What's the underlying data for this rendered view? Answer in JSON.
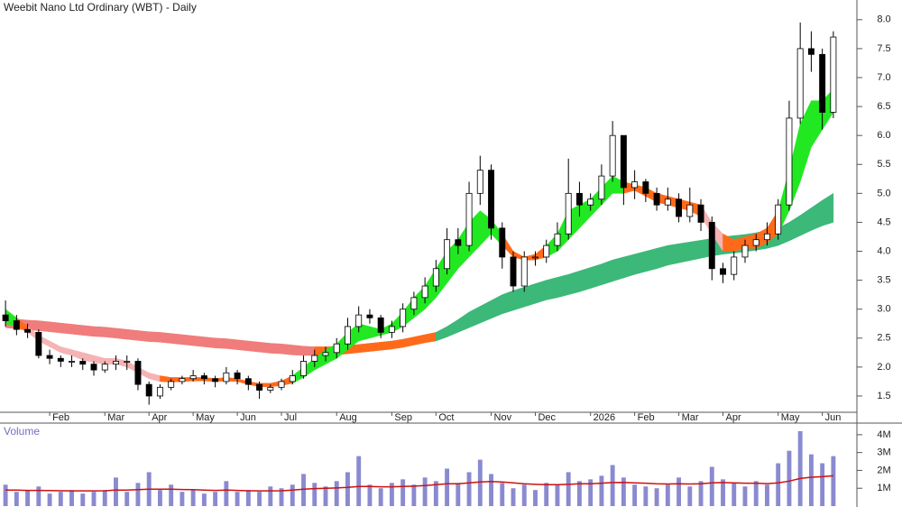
{
  "chart_data": [
    {
      "type": "candlestick",
      "title": "Weebit Nano Ltd Ordinary (WBT) - Daily",
      "categories": [
        null,
        null,
        null,
        null,
        "Feb",
        null,
        null,
        null,
        null,
        "Mar",
        null,
        null,
        null,
        "Apr",
        null,
        null,
        null,
        "May",
        null,
        null,
        null,
        "Jun",
        null,
        null,
        null,
        "Jul",
        null,
        null,
        null,
        null,
        "Aug",
        null,
        null,
        null,
        null,
        "Sep",
        null,
        null,
        null,
        "Oct",
        null,
        null,
        null,
        null,
        "Nov",
        null,
        null,
        null,
        "Dec",
        null,
        null,
        null,
        null,
        "2026",
        null,
        null,
        null,
        "Feb",
        null,
        null,
        null,
        "Mar",
        null,
        null,
        null,
        "Apr",
        null,
        null,
        null,
        null,
        "May",
        null,
        null,
        null,
        "Jun",
        null
      ],
      "open": [
        2.9,
        2.8,
        2.65,
        2.6,
        2.2,
        2.15,
        2.1,
        2.1,
        2.05,
        1.95,
        2.05,
        2.1,
        2.1,
        1.7,
        1.5,
        1.65,
        1.75,
        1.8,
        1.85,
        1.8,
        1.75,
        1.9,
        1.8,
        1.7,
        1.6,
        1.65,
        1.75,
        1.85,
        2.1,
        2.2,
        2.25,
        2.4,
        2.7,
        2.9,
        2.85,
        2.6,
        2.7,
        3.0,
        3.2,
        3.4,
        3.7,
        4.2,
        4.1,
        5.0,
        5.4,
        4.4,
        3.9,
        3.4,
        3.9,
        3.9,
        4.1,
        4.3,
        5.0,
        4.8,
        4.9,
        5.3,
        6.0,
        5.1,
        5.2,
        5.0,
        4.8,
        4.9,
        4.6,
        4.8,
        4.5,
        3.7,
        3.6,
        3.9,
        4.1,
        4.2,
        4.3,
        4.8,
        6.3,
        7.5,
        7.4,
        6.4
      ],
      "high": [
        3.15,
        2.9,
        2.75,
        2.65,
        2.3,
        2.2,
        2.2,
        2.15,
        2.1,
        2.1,
        2.2,
        2.2,
        2.15,
        1.75,
        1.7,
        1.8,
        1.85,
        1.95,
        1.9,
        1.85,
        2.0,
        1.95,
        1.85,
        1.75,
        1.7,
        1.8,
        1.95,
        2.2,
        2.3,
        2.35,
        2.5,
        2.85,
        3.05,
        3.0,
        2.9,
        2.8,
        3.1,
        3.3,
        3.55,
        3.85,
        4.4,
        4.4,
        5.2,
        5.65,
        5.5,
        4.5,
        4.0,
        4.0,
        4.0,
        4.2,
        4.5,
        5.6,
        5.2,
        5.0,
        5.5,
        6.25,
        6.0,
        5.4,
        5.25,
        5.1,
        5.1,
        5.0,
        5.1,
        4.9,
        4.6,
        3.8,
        4.0,
        4.2,
        4.3,
        4.5,
        4.9,
        6.6,
        7.95,
        7.8,
        7.5,
        7.8
      ],
      "low": [
        2.7,
        2.55,
        2.5,
        2.15,
        2.05,
        2.0,
        2.0,
        1.95,
        1.85,
        1.9,
        1.95,
        1.95,
        1.6,
        1.35,
        1.45,
        1.6,
        1.7,
        1.75,
        1.7,
        1.65,
        1.7,
        1.7,
        1.6,
        1.45,
        1.55,
        1.6,
        1.7,
        1.8,
        2.0,
        2.1,
        2.15,
        2.3,
        2.6,
        2.75,
        2.5,
        2.5,
        2.6,
        2.9,
        3.1,
        3.3,
        3.6,
        3.95,
        4.0,
        4.8,
        4.2,
        3.7,
        3.3,
        3.3,
        3.75,
        3.8,
        4.0,
        4.2,
        4.6,
        4.7,
        4.8,
        5.2,
        4.8,
        4.9,
        4.85,
        4.7,
        4.7,
        4.5,
        4.5,
        4.35,
        3.5,
        3.45,
        3.5,
        3.8,
        4.0,
        4.1,
        4.2,
        4.7,
        6.2,
        7.1,
        6.1,
        6.3
      ],
      "close": [
        2.8,
        2.65,
        2.6,
        2.2,
        2.15,
        2.1,
        2.1,
        2.05,
        1.95,
        2.05,
        2.1,
        2.1,
        1.7,
        1.5,
        1.65,
        1.75,
        1.8,
        1.85,
        1.8,
        1.75,
        1.9,
        1.8,
        1.7,
        1.6,
        1.65,
        1.75,
        1.85,
        2.1,
        2.2,
        2.25,
        2.4,
        2.7,
        2.9,
        2.85,
        2.6,
        2.7,
        3.0,
        3.2,
        3.4,
        3.7,
        4.2,
        4.1,
        5.0,
        5.4,
        4.4,
        3.9,
        3.4,
        3.9,
        3.9,
        4.1,
        4.3,
        5.0,
        4.8,
        4.9,
        5.3,
        6.0,
        5.1,
        5.2,
        5.0,
        4.8,
        4.9,
        4.6,
        4.8,
        4.5,
        3.7,
        3.6,
        3.9,
        4.1,
        4.2,
        4.3,
        4.8,
        6.3,
        7.5,
        7.4,
        6.4,
        7.7
      ],
      "up_color": "#ffffff",
      "down_color": "#000000",
      "bands": [
        {
          "upper": [
            2.85,
            2.83,
            2.81,
            2.8,
            2.78,
            2.76,
            2.74,
            2.72,
            2.7,
            2.69,
            2.67,
            2.65,
            2.63,
            2.61,
            2.6,
            2.58,
            2.56,
            2.54,
            2.52,
            2.5,
            2.49,
            2.47,
            2.45,
            2.43,
            2.41,
            2.4,
            2.38,
            2.36,
            2.35,
            2.35,
            2.35,
            2.37,
            2.39,
            2.41,
            2.43,
            2.45,
            2.48,
            2.52,
            2.56,
            2.6,
            2.7,
            2.82,
            2.95,
            3.05,
            3.15,
            3.25,
            3.32,
            3.38,
            3.44,
            3.5,
            3.55,
            3.6,
            3.66,
            3.72,
            3.78,
            3.85,
            3.9,
            3.95,
            4.0,
            4.05,
            4.1,
            4.13,
            4.16,
            4.19,
            4.22,
            4.25,
            4.27,
            4.29,
            4.32,
            4.36,
            4.4,
            4.5,
            4.62,
            4.75,
            4.88,
            5.0
          ],
          "lower": [
            2.68,
            2.66,
            2.64,
            2.63,
            2.61,
            2.59,
            2.57,
            2.55,
            2.53,
            2.52,
            2.5,
            2.48,
            2.46,
            2.44,
            2.43,
            2.41,
            2.39,
            2.37,
            2.35,
            2.33,
            2.32,
            2.3,
            2.28,
            2.26,
            2.24,
            2.23,
            2.21,
            2.2,
            2.2,
            2.2,
            2.21,
            2.23,
            2.25,
            2.27,
            2.29,
            2.31,
            2.34,
            2.38,
            2.42,
            2.45,
            2.52,
            2.6,
            2.68,
            2.76,
            2.84,
            2.92,
            2.98,
            3.04,
            3.1,
            3.16,
            3.2,
            3.25,
            3.3,
            3.36,
            3.42,
            3.48,
            3.54,
            3.6,
            3.65,
            3.7,
            3.76,
            3.8,
            3.84,
            3.88,
            3.92,
            3.95,
            3.97,
            3.99,
            4.02,
            4.05,
            4.1,
            4.18,
            4.27,
            4.36,
            4.44,
            4.5
          ],
          "colors": [
            "#f07c7c",
            "#f07c7c",
            "#f07c7c",
            "#f07c7c",
            "#f07c7c",
            "#f07c7c",
            "#f07c7c",
            "#f07c7c",
            "#f07c7c",
            "#f07c7c",
            "#f07c7c",
            "#f07c7c",
            "#f07c7c",
            "#f07c7c",
            "#f07c7c",
            "#f07c7c",
            "#f07c7c",
            "#f07c7c",
            "#f07c7c",
            "#f07c7c",
            "#f07c7c",
            "#f07c7c",
            "#f07c7c",
            "#f07c7c",
            "#f07c7c",
            "#f07c7c",
            "#f07c7c",
            "#f07c7c",
            "#ff6a1a",
            "#ff6a1a",
            "#ff6a1a",
            "#ff6a1a",
            "#ff6a1a",
            "#ff6a1a",
            "#ff6a1a",
            "#ff6a1a",
            "#ff6a1a",
            "#ff6a1a",
            "#ff6a1a",
            "#3cb878",
            "#3cb878",
            "#3cb878",
            "#3cb878",
            "#3cb878",
            "#3cb878",
            "#3cb878",
            "#3cb878",
            "#3cb878",
            "#3cb878",
            "#3cb878",
            "#3cb878",
            "#3cb878",
            "#3cb878",
            "#3cb878",
            "#3cb878",
            "#3cb878",
            "#3cb878",
            "#3cb878",
            "#3cb878",
            "#3cb878",
            "#3cb878",
            "#3cb878",
            "#3cb878",
            "#3cb878",
            "#3cb878",
            "#3cb878",
            "#3cb878",
            "#3cb878",
            "#3cb878",
            "#3cb878",
            "#3cb878",
            "#3cb878",
            "#3cb878",
            "#3cb878",
            "#3cb878",
            "#3cb878"
          ]
        },
        {
          "upper": [
            3.0,
            2.85,
            2.7,
            2.55,
            2.45,
            2.35,
            2.3,
            2.25,
            2.2,
            2.15,
            2.15,
            2.1,
            2.0,
            1.9,
            1.85,
            1.82,
            1.82,
            1.82,
            1.82,
            1.8,
            1.82,
            1.8,
            1.75,
            1.72,
            1.72,
            1.76,
            1.85,
            2.0,
            2.15,
            2.3,
            2.4,
            2.6,
            2.75,
            2.7,
            2.65,
            2.75,
            2.95,
            3.2,
            3.4,
            3.7,
            4.0,
            4.2,
            4.5,
            4.7,
            4.55,
            4.3,
            4.0,
            3.9,
            3.95,
            4.1,
            4.3,
            4.7,
            4.8,
            4.9,
            5.1,
            5.3,
            5.2,
            5.15,
            5.1,
            5.0,
            4.95,
            4.9,
            4.85,
            4.8,
            4.5,
            4.3,
            4.2,
            4.25,
            4.3,
            4.4,
            4.7,
            5.4,
            6.2,
            6.6,
            6.6,
            6.8
          ],
          "lower": [
            2.75,
            2.7,
            2.6,
            2.45,
            2.35,
            2.25,
            2.2,
            2.12,
            2.08,
            2.05,
            2.05,
            2.0,
            1.9,
            1.8,
            1.75,
            1.74,
            1.75,
            1.76,
            1.76,
            1.75,
            1.76,
            1.75,
            1.7,
            1.66,
            1.66,
            1.68,
            1.72,
            1.82,
            1.95,
            2.05,
            2.15,
            2.3,
            2.45,
            2.5,
            2.55,
            2.6,
            2.7,
            2.85,
            3.0,
            3.2,
            3.45,
            3.7,
            3.9,
            4.1,
            4.3,
            4.1,
            3.9,
            3.85,
            3.85,
            3.9,
            4.0,
            4.2,
            4.4,
            4.6,
            4.8,
            5.0,
            5.0,
            5.05,
            4.95,
            4.85,
            4.8,
            4.75,
            4.7,
            4.6,
            4.3,
            4.0,
            4.0,
            4.05,
            4.05,
            4.15,
            4.3,
            4.7,
            5.2,
            5.8,
            6.1,
            6.4
          ],
          "colors": [
            "#22e822",
            "#ff6a1a",
            "#f5b3b3",
            "#f5b3b3",
            "#f5b3b3",
            "#f5b3b3",
            "#f5b3b3",
            "#f5b3b3",
            "#f5b3b3",
            "#f5b3b3",
            "#f5b3b3",
            "#f5b3b3",
            "#f5b3b3",
            "#f5b3b3",
            "#ff6a1a",
            "#ff6a1a",
            "#ff6a1a",
            "#ff6a1a",
            "#ff6a1a",
            "#ff6a1a",
            "#ff6a1a",
            "#ff6a1a",
            "#ff6a1a",
            "#ff6a1a",
            "#ff6a1a",
            "#ff6a1a",
            "#22e822",
            "#22e822",
            "#22e822",
            "#22e822",
            "#22e822",
            "#22e822",
            "#22e822",
            "#22e822",
            "#22e822",
            "#22e822",
            "#22e822",
            "#22e822",
            "#22e822",
            "#22e822",
            "#22e822",
            "#22e822",
            "#22e822",
            "#22e822",
            "#22e822",
            "#ff6a1a",
            "#ff6a1a",
            "#ff6a1a",
            "#ff6a1a",
            "#22e822",
            "#22e822",
            "#22e822",
            "#22e822",
            "#22e822",
            "#22e822",
            "#22e822",
            "#ff6a1a",
            "#ff6a1a",
            "#ff6a1a",
            "#ff6a1a",
            "#ff6a1a",
            "#ff6a1a",
            "#ff6a1a",
            "#f5b3b3",
            "#f5b3b3",
            "#ff6a1a",
            "#ff6a1a",
            "#ff6a1a",
            "#ff6a1a",
            "#ff6a1a",
            "#22e822",
            "#22e822",
            "#22e822",
            "#22e822",
            "#22e822",
            "#22e822"
          ]
        }
      ],
      "ylim": [
        1.25,
        8.34
      ],
      "yticks": [
        1.5,
        {
          "value": 2,
          "label": "2.0"
        },
        2.5,
        {
          "value": 3,
          "label": "3.0"
        },
        3.5,
        {
          "value": 4,
          "label": "4.0"
        },
        4.5,
        {
          "value": 5,
          "label": "5.0"
        },
        5.5,
        {
          "value": 6,
          "label": "6.0"
        },
        6.5,
        {
          "value": 7,
          "label": "7.0"
        },
        7.5,
        {
          "value": 8,
          "label": "8.0"
        }
      ]
    },
    {
      "type": "bar",
      "title": "Volume",
      "color": "#8a8ad0",
      "values": [
        1.2,
        0.8,
        0.9,
        1.1,
        0.7,
        0.8,
        0.9,
        0.7,
        0.8,
        0.9,
        1.6,
        0.8,
        1.3,
        1.9,
        0.9,
        1.2,
        0.8,
        0.9,
        0.7,
        0.8,
        1.4,
        0.8,
        0.9,
        0.8,
        1.1,
        1.0,
        1.2,
        1.8,
        1.3,
        1.1,
        1.4,
        1.9,
        2.8,
        1.2,
        1.0,
        1.3,
        1.5,
        1.2,
        1.6,
        1.4,
        2.1,
        1.3,
        1.9,
        2.6,
        1.8,
        1.3,
        1.0,
        1.2,
        0.9,
        1.3,
        1.2,
        1.9,
        1.4,
        1.5,
        1.7,
        2.3,
        1.6,
        1.2,
        1.1,
        1.0,
        1.2,
        1.6,
        1.1,
        1.4,
        2.2,
        1.5,
        1.3,
        1.1,
        1.4,
        1.2,
        2.4,
        3.1,
        4.2,
        2.9,
        2.4,
        2.8
      ],
      "average": {
        "color": "#cc1111",
        "values": [
          0.9,
          0.9,
          0.88,
          0.88,
          0.87,
          0.86,
          0.85,
          0.85,
          0.85,
          0.86,
          0.9,
          0.9,
          0.92,
          0.95,
          0.95,
          0.95,
          0.93,
          0.92,
          0.9,
          0.88,
          0.9,
          0.88,
          0.86,
          0.85,
          0.85,
          0.86,
          0.9,
          0.95,
          0.98,
          1.0,
          1.02,
          1.05,
          1.1,
          1.1,
          1.08,
          1.08,
          1.1,
          1.12,
          1.15,
          1.2,
          1.25,
          1.25,
          1.3,
          1.35,
          1.38,
          1.35,
          1.3,
          1.25,
          1.22,
          1.2,
          1.2,
          1.22,
          1.25,
          1.25,
          1.28,
          1.32,
          1.33,
          1.3,
          1.28,
          1.25,
          1.24,
          1.25,
          1.24,
          1.25,
          1.3,
          1.32,
          1.3,
          1.28,
          1.28,
          1.26,
          1.3,
          1.4,
          1.55,
          1.62,
          1.65,
          1.7
        ]
      },
      "ylim": [
        0,
        4.6
      ],
      "yticks": [
        {
          "value": 1,
          "label": "1M"
        },
        {
          "value": 2,
          "label": "2M"
        },
        {
          "value": 3,
          "label": "3M"
        },
        {
          "value": 4,
          "label": "4M"
        }
      ]
    }
  ]
}
